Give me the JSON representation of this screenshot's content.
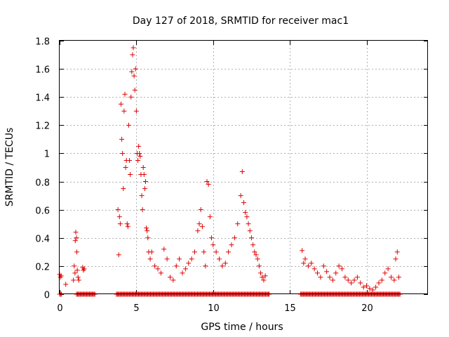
{
  "chart_data": {
    "type": "scatter",
    "title": "Day 127 of 2018, SRMTID for receiver mac1",
    "xlabel": "GPS time / hours",
    "ylabel": "SRMTID / TECUs",
    "xlim": [
      0,
      24
    ],
    "ylim": [
      0,
      1.8
    ],
    "x_ticks": [
      0,
      5,
      10,
      15,
      20
    ],
    "y_ticks": [
      0,
      0.2,
      0.4,
      0.6,
      0.8,
      1,
      1.2,
      1.4,
      1.6,
      1.8
    ],
    "x_tick_labels": [
      "0",
      "5",
      "10",
      "15",
      "20"
    ],
    "y_tick_labels": [
      "0",
      "0.2",
      "0.4",
      "0.6",
      "0.8",
      "1",
      "1.2",
      "1.4",
      "1.6",
      "1.8"
    ],
    "grid": true,
    "marker": "+",
    "color": "#e00000",
    "series": [
      {
        "name": "mac1",
        "x": [
          0.0,
          0.05,
          0.1,
          0.4,
          0.9,
          0.95,
          1.0,
          1.02,
          1.05,
          1.1,
          1.12,
          1.15,
          1.2,
          1.25,
          1.5,
          1.55,
          1.6,
          3.8,
          3.85,
          3.9,
          3.95,
          4.0,
          4.05,
          4.1,
          4.15,
          4.2,
          4.25,
          4.3,
          4.35,
          4.4,
          4.45,
          4.5,
          4.55,
          4.6,
          4.65,
          4.7,
          4.75,
          4.8,
          4.85,
          4.9,
          4.95,
          5.0,
          5.05,
          5.1,
          5.15,
          5.2,
          5.25,
          5.3,
          5.35,
          5.4,
          5.45,
          5.5,
          5.55,
          5.6,
          5.65,
          5.7,
          5.75,
          5.8,
          5.9,
          6.0,
          6.2,
          6.4,
          6.6,
          6.8,
          7.0,
          7.2,
          7.4,
          7.6,
          7.8,
          8.0,
          8.2,
          8.4,
          8.6,
          8.8,
          9.0,
          9.1,
          9.2,
          9.3,
          9.4,
          9.5,
          9.6,
          9.7,
          9.8,
          9.9,
          10.0,
          10.2,
          10.4,
          10.6,
          10.8,
          11.0,
          11.2,
          11.4,
          11.6,
          11.8,
          11.9,
          12.0,
          12.1,
          12.2,
          12.3,
          12.4,
          12.5,
          12.6,
          12.7,
          12.8,
          12.9,
          13.0,
          13.1,
          13.2,
          13.3,
          13.4,
          15.8,
          15.9,
          16.0,
          16.2,
          16.4,
          16.6,
          16.8,
          17.0,
          17.2,
          17.4,
          17.6,
          17.8,
          18.0,
          18.2,
          18.4,
          18.6,
          18.8,
          19.0,
          19.2,
          19.4,
          19.6,
          19.8,
          20.0,
          20.2,
          20.4,
          20.6,
          20.8,
          21.0,
          21.2,
          21.4,
          21.6,
          21.8,
          21.9,
          22.0,
          22.1
        ],
        "y": [
          0.14,
          0.12,
          0.13,
          0.07,
          0.1,
          0.2,
          0.15,
          0.38,
          0.44,
          0.4,
          0.3,
          0.17,
          0.12,
          0.1,
          0.19,
          0.17,
          0.18,
          0.6,
          0.28,
          0.55,
          0.5,
          1.35,
          1.1,
          1.0,
          0.75,
          1.3,
          1.42,
          0.9,
          0.95,
          0.5,
          0.48,
          1.2,
          0.95,
          0.85,
          1.4,
          1.58,
          1.7,
          1.75,
          1.55,
          1.45,
          1.6,
          1.3,
          1.0,
          0.95,
          1.05,
          1.0,
          0.98,
          0.85,
          0.7,
          0.6,
          0.9,
          0.85,
          0.75,
          0.8,
          0.47,
          0.45,
          0.4,
          0.3,
          0.25,
          0.3,
          0.2,
          0.18,
          0.15,
          0.32,
          0.25,
          0.12,
          0.1,
          0.2,
          0.25,
          0.15,
          0.18,
          0.22,
          0.25,
          0.3,
          0.45,
          0.5,
          0.6,
          0.48,
          0.3,
          0.2,
          0.8,
          0.78,
          0.55,
          0.4,
          0.35,
          0.3,
          0.25,
          0.2,
          0.22,
          0.3,
          0.35,
          0.4,
          0.5,
          0.7,
          0.87,
          0.65,
          0.58,
          0.55,
          0.5,
          0.45,
          0.4,
          0.35,
          0.3,
          0.28,
          0.25,
          0.2,
          0.15,
          0.12,
          0.1,
          0.13,
          0.31,
          0.22,
          0.25,
          0.2,
          0.22,
          0.18,
          0.15,
          0.12,
          0.2,
          0.16,
          0.12,
          0.1,
          0.15,
          0.2,
          0.18,
          0.12,
          0.1,
          0.08,
          0.1,
          0.12,
          0.08,
          0.05,
          0.06,
          0.04,
          0.03,
          0.05,
          0.08,
          0.1,
          0.15,
          0.18,
          0.12,
          0.1,
          0.25,
          0.3,
          0.12
        ],
        "zero_segments": [
          [
            0.0,
            0.15
          ],
          [
            1.1,
            2.3
          ],
          [
            3.7,
            13.7
          ],
          [
            15.7,
            22.2
          ]
        ]
      }
    ]
  }
}
